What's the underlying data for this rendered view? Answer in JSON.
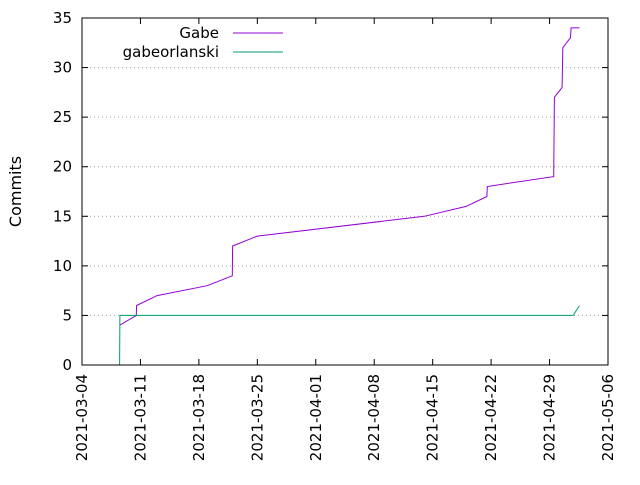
{
  "chart_data": {
    "type": "line",
    "title": "",
    "xlabel": "",
    "ylabel": "Commits",
    "x_type": "date",
    "xlim": [
      "2021-03-04",
      "2021-05-06"
    ],
    "ylim": [
      0,
      35
    ],
    "x_ticks": [
      "2021-03-04",
      "2021-03-11",
      "2021-03-18",
      "2021-03-25",
      "2021-04-01",
      "2021-04-08",
      "2021-04-15",
      "2021-04-22",
      "2021-04-29",
      "2021-05-06"
    ],
    "y_ticks": [
      0,
      5,
      10,
      15,
      20,
      25,
      30,
      35
    ],
    "grid": "horizontal dotted",
    "legend_position": "top-left",
    "series": [
      {
        "name": "Gabe",
        "color": "#9400d3",
        "points": [
          [
            "2021-03-08T12:00",
            4
          ],
          [
            "2021-03-10T12:00",
            5
          ],
          [
            "2021-03-10T13:00",
            6
          ],
          [
            "2021-03-13T00:00",
            7
          ],
          [
            "2021-03-19T00:00",
            8
          ],
          [
            "2021-03-22T00:00",
            9
          ],
          [
            "2021-03-22T01:00",
            12
          ],
          [
            "2021-03-25T00:00",
            13
          ],
          [
            "2021-04-14T00:00",
            15
          ],
          [
            "2021-04-19T00:00",
            16
          ],
          [
            "2021-04-21T12:00",
            17
          ],
          [
            "2021-04-21T13:00",
            18
          ],
          [
            "2021-04-29T12:00",
            19
          ],
          [
            "2021-04-29T14:00",
            27
          ],
          [
            "2021-04-30T12:00",
            28
          ],
          [
            "2021-04-30T14:00",
            32
          ],
          [
            "2021-05-01T12:00",
            33
          ],
          [
            "2021-05-01T14:00",
            34
          ],
          [
            "2021-05-02T14:00",
            34
          ]
        ]
      },
      {
        "name": "gabeorlanski",
        "color": "#009e73",
        "points": [
          [
            "2021-03-08T12:00",
            0
          ],
          [
            "2021-03-08T13:00",
            5
          ],
          [
            "2021-05-01T20:00",
            5
          ],
          [
            "2021-05-02T14:00",
            6
          ]
        ]
      }
    ]
  }
}
